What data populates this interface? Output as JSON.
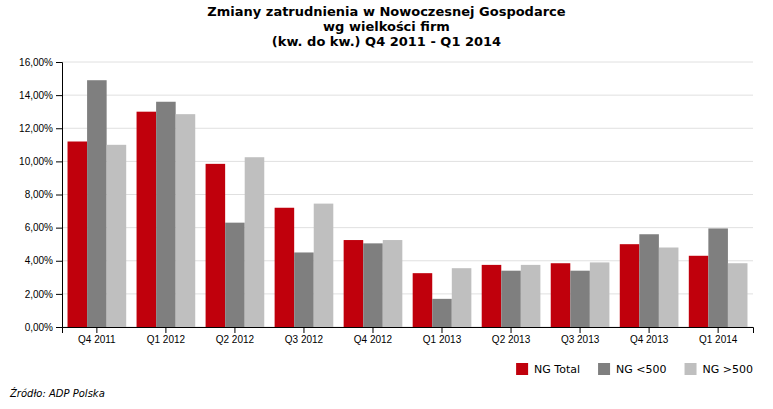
{
  "chart_data": {
    "type": "bar",
    "title": "Zmiany zatrudnienia w Nowoczesnej Gospodarce\nwg wielkości firm\n(kw. do kw.) Q4 2011 - Q1 2014",
    "categories": [
      "Q4 2011",
      "Q1 2012",
      "Q2 2012",
      "Q3 2012",
      "Q4 2012",
      "Q1 2013",
      "Q2 2013",
      "Q3 2013",
      "Q4 2013",
      "Q1 2014"
    ],
    "series": [
      {
        "name": "NG Total",
        "color": "#c0000c",
        "values": [
          0.112,
          0.13,
          0.0985,
          0.072,
          0.0525,
          0.0325,
          0.0375,
          0.0385,
          0.05,
          0.043
        ]
      },
      {
        "name": "NG <500",
        "color": "#7f7f7f",
        "values": [
          0.149,
          0.136,
          0.063,
          0.045,
          0.0505,
          0.017,
          0.034,
          0.034,
          0.056,
          0.0595
        ]
      },
      {
        "name": "NG >500",
        "color": "#bfbfbf",
        "values": [
          0.11,
          0.1285,
          0.1025,
          0.0745,
          0.0525,
          0.0355,
          0.0375,
          0.039,
          0.048,
          0.0385
        ]
      }
    ],
    "ylim": [
      0,
      0.16
    ],
    "yticks": [
      {
        "value": 0.0,
        "label": "0,00%"
      },
      {
        "value": 0.02,
        "label": "2,00%"
      },
      {
        "value": 0.04,
        "label": "4,00%"
      },
      {
        "value": 0.06,
        "label": "6,00%"
      },
      {
        "value": 0.08,
        "label": "8,00%"
      },
      {
        "value": 0.1,
        "label": "10,00%"
      },
      {
        "value": 0.12,
        "label": "12,00%"
      },
      {
        "value": 0.14,
        "label": "14,00%"
      },
      {
        "value": 0.16,
        "label": "16,00%"
      }
    ],
    "grid": true,
    "legend": "lower right",
    "annotations": [
      "Źródło: ADP Polska"
    ]
  }
}
